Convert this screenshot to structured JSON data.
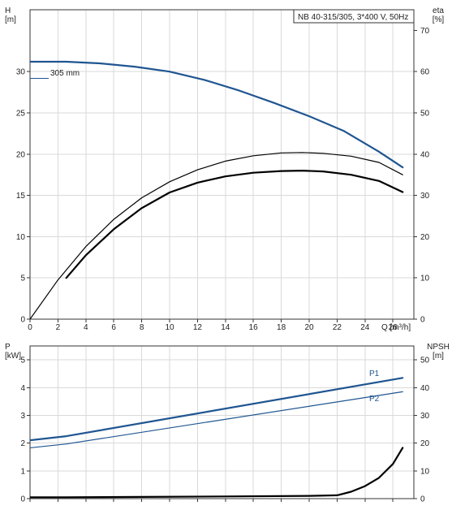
{
  "chart_data": [
    {
      "type": "line",
      "title": "NB 40-315/305, 3*400 V, 50Hz",
      "xlabel": "Q [m³/h]",
      "ylabel_left": [
        "H",
        "[m]"
      ],
      "ylabel_right": [
        "eta",
        "[%]"
      ],
      "xlim": [
        0,
        27.5
      ],
      "ylim_left": [
        0,
        37.5
      ],
      "ylim_right": [
        0,
        75
      ],
      "x_ticks": [
        0,
        2,
        4,
        6,
        8,
        10,
        12,
        14,
        16,
        18,
        20,
        22,
        24,
        26
      ],
      "y_ticks_left": [
        0,
        5,
        10,
        15,
        20,
        25,
        30
      ],
      "y_ticks_right": [
        0,
        10,
        20,
        30,
        40,
        50,
        60,
        70
      ],
      "grid": true,
      "colors": {
        "head": "#1f5591",
        "eta": "#000000"
      },
      "series": [
        {
          "name": "305 mm",
          "axis": "left",
          "color": "#1f5591",
          "width": 2.2,
          "x": [
            -1.5,
            0,
            2.6,
            5,
            7.5,
            10,
            12.5,
            15,
            17.5,
            20,
            22.5,
            25,
            26.7
          ],
          "y": [
            31.2,
            31.2,
            31.2,
            31.0,
            30.6,
            30.0,
            29.0,
            27.7,
            26.2,
            24.6,
            22.8,
            20.3,
            18.4
          ]
        },
        {
          "name": "",
          "axis": "right",
          "color": "#000000",
          "width": 1.2,
          "x": [
            0,
            2,
            4,
            6,
            8,
            10,
            12,
            14,
            16,
            18,
            19.5,
            21,
            23,
            25,
            26.7
          ],
          "y": [
            0,
            9.5,
            17.6,
            24.2,
            29.4,
            33.3,
            36.2,
            38.3,
            39.6,
            40.3,
            40.4,
            40.2,
            39.5,
            38.0,
            35.0
          ]
        },
        {
          "name": "",
          "axis": "right",
          "color": "#000000",
          "width": 2.2,
          "x": [
            2.6,
            4,
            6,
            8,
            10,
            12,
            14,
            16,
            18,
            19.5,
            21,
            23,
            25,
            26.7
          ],
          "y": [
            10.0,
            15.5,
            21.8,
            26.9,
            30.7,
            33.1,
            34.6,
            35.5,
            35.9,
            36.0,
            35.8,
            35.0,
            33.5,
            30.8
          ]
        }
      ]
    },
    {
      "type": "line",
      "title": "",
      "xlabel": "",
      "ylabel_left": [
        "P",
        "[kW]"
      ],
      "ylabel_right": [
        "NPSH",
        "[m]"
      ],
      "xlim": [
        0,
        27.5
      ],
      "ylim_left": [
        0,
        5.5
      ],
      "ylim_right": [
        0,
        55
      ],
      "y_ticks_left": [
        0,
        1,
        2,
        3,
        4,
        5
      ],
      "y_ticks_right": [
        0,
        10,
        20,
        30,
        40,
        50
      ],
      "grid": true,
      "colors": {
        "power": "#1f5591",
        "npsh": "#000000"
      },
      "series": [
        {
          "name": "P1",
          "axis": "left",
          "color": "#1f5591",
          "width": 2.2,
          "x": [
            -1.5,
            2.6,
            26.7
          ],
          "y": [
            2.02,
            2.25,
            4.35
          ]
        },
        {
          "name": "P2",
          "axis": "left",
          "color": "#1f5591",
          "width": 1.2,
          "x": [
            -1.5,
            2.6,
            26.7
          ],
          "y": [
            1.75,
            1.97,
            3.85
          ]
        },
        {
          "name": "",
          "axis": "right",
          "color": "#000000",
          "width": 2.2,
          "x": [
            -1.5,
            2.6,
            8,
            14,
            20,
            22,
            23,
            24,
            25,
            26,
            26.7
          ],
          "y": [
            0.5,
            0.5,
            0.6,
            0.8,
            1.0,
            1.2,
            2.5,
            4.5,
            7.5,
            12.5,
            18.3
          ]
        }
      ]
    }
  ]
}
